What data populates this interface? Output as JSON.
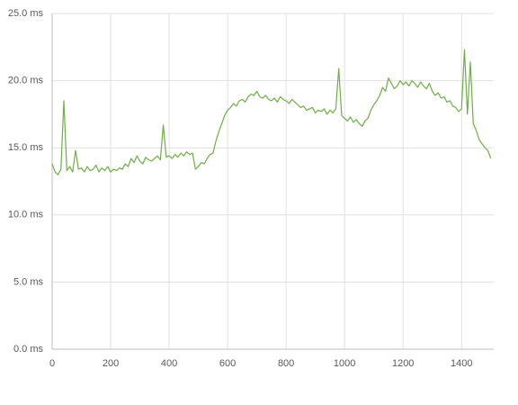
{
  "chart_data": {
    "type": "line",
    "grid": true,
    "xlim": [
      0,
      1510
    ],
    "xticks": [
      0,
      200,
      400,
      600,
      800,
      1000,
      1200,
      1400
    ],
    "ylim": [
      0,
      25
    ],
    "yticks": [
      {
        "value": 0,
        "label": "0.0 ms"
      },
      {
        "value": 5,
        "label": "5.0 ms"
      },
      {
        "value": 10,
        "label": "10.0 ms"
      },
      {
        "value": 15,
        "label": "15.0 ms"
      },
      {
        "value": 20,
        "label": "20.0 ms"
      },
      {
        "value": 25,
        "label": "25.0 ms"
      }
    ],
    "x": [
      0,
      10,
      20,
      30,
      40,
      50,
      60,
      70,
      80,
      90,
      100,
      110,
      120,
      130,
      140,
      150,
      160,
      170,
      180,
      190,
      200,
      210,
      220,
      230,
      240,
      250,
      260,
      270,
      280,
      290,
      300,
      310,
      320,
      330,
      340,
      350,
      360,
      370,
      380,
      390,
      400,
      410,
      420,
      430,
      440,
      450,
      460,
      470,
      480,
      490,
      500,
      510,
      520,
      530,
      540,
      550,
      560,
      570,
      580,
      590,
      600,
      610,
      620,
      630,
      640,
      650,
      660,
      670,
      680,
      690,
      700,
      710,
      720,
      730,
      740,
      750,
      760,
      770,
      780,
      790,
      800,
      810,
      820,
      830,
      840,
      850,
      860,
      870,
      880,
      890,
      900,
      910,
      920,
      930,
      940,
      950,
      960,
      970,
      980,
      990,
      1000,
      1010,
      1020,
      1030,
      1040,
      1050,
      1060,
      1070,
      1080,
      1090,
      1100,
      1110,
      1120,
      1130,
      1140,
      1150,
      1160,
      1170,
      1180,
      1190,
      1200,
      1210,
      1220,
      1230,
      1240,
      1250,
      1260,
      1270,
      1280,
      1290,
      1300,
      1310,
      1320,
      1330,
      1340,
      1350,
      1360,
      1370,
      1380,
      1390,
      1400,
      1410,
      1420,
      1430,
      1440,
      1450,
      1460,
      1470,
      1480,
      1490,
      1500
    ],
    "series": [
      {
        "color": "#70ad47",
        "values": [
          13.8,
          13.2,
          13.0,
          13.4,
          18.5,
          13.3,
          13.6,
          13.2,
          14.8,
          13.4,
          13.5,
          13.2,
          13.6,
          13.3,
          13.4,
          13.7,
          13.2,
          13.5,
          13.3,
          13.6,
          13.2,
          13.4,
          13.3,
          13.5,
          13.4,
          13.8,
          13.6,
          14.2,
          13.9,
          14.4,
          14.0,
          13.8,
          14.3,
          14.1,
          14.0,
          14.2,
          14.4,
          14.1,
          16.7,
          14.3,
          14.4,
          14.2,
          14.5,
          14.3,
          14.6,
          14.4,
          14.7,
          14.5,
          14.6,
          13.4,
          13.6,
          13.9,
          13.8,
          14.2,
          14.5,
          14.6,
          15.5,
          16.2,
          16.8,
          17.4,
          17.8,
          18.0,
          18.3,
          18.1,
          18.5,
          18.6,
          18.4,
          18.8,
          19.0,
          18.9,
          19.2,
          18.8,
          18.7,
          18.9,
          18.6,
          18.5,
          18.7,
          18.4,
          18.8,
          18.6,
          18.5,
          18.3,
          18.6,
          18.4,
          18.2,
          18.0,
          18.1,
          17.8,
          17.9,
          18.0,
          17.6,
          17.8,
          17.7,
          17.9,
          17.5,
          17.8,
          17.6,
          17.9,
          20.9,
          17.4,
          17.2,
          17.0,
          17.3,
          16.9,
          17.1,
          16.8,
          16.6,
          17.0,
          17.2,
          17.8,
          18.2,
          18.5,
          18.9,
          19.5,
          19.2,
          20.2,
          19.8,
          19.4,
          19.6,
          20.0,
          19.7,
          19.9,
          19.6,
          20.0,
          19.8,
          19.5,
          19.9,
          19.6,
          19.4,
          19.8,
          19.2,
          18.9,
          19.1,
          18.7,
          18.8,
          18.4,
          18.5,
          18.1,
          18.0,
          17.7,
          17.9,
          22.3,
          17.5,
          21.4,
          16.8,
          16.3,
          15.6,
          15.3,
          15.0,
          14.8,
          14.2
        ]
      }
    ]
  }
}
